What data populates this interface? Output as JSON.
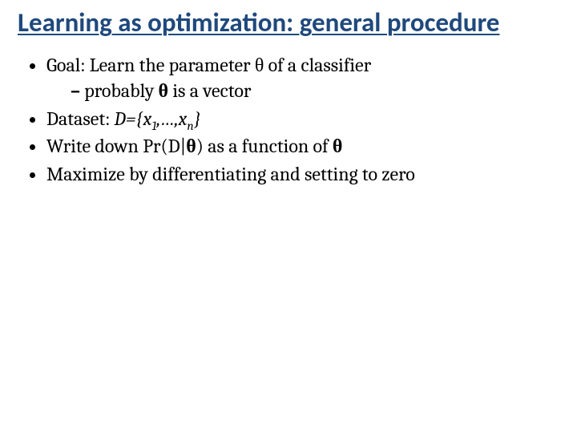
{
  "title": "Learning as optimization: general procedure",
  "bullets": {
    "b1_pre": "Goal: Learn the parameter ",
    "b1_theta": "θ",
    "b1_post": " of a classifier",
    "b1a_pre": "probably ",
    "b1a_theta": "θ",
    "b1a_post": " is a vector",
    "b2_pre": "Dataset: ",
    "b2_D": "D={x",
    "b2_sub1": "1",
    "b2_mid": ",…,x",
    "b2_subn": "n",
    "b2_close": "}",
    "b3_pre": "Write down Pr(D|",
    "b3_theta1": "θ",
    "b3_mid": ") as a function of ",
    "b3_theta2": "θ",
    "b4": "Maximize by differentiating and setting to zero"
  },
  "colors": {
    "title": "#1f497d",
    "body": "#000000",
    "background": "#ffffff"
  },
  "typography": {
    "title_font": "Calibri",
    "title_size_pt": 33,
    "title_weight": "bold",
    "body_font": "Cambria",
    "body_size_pt": 24
  }
}
